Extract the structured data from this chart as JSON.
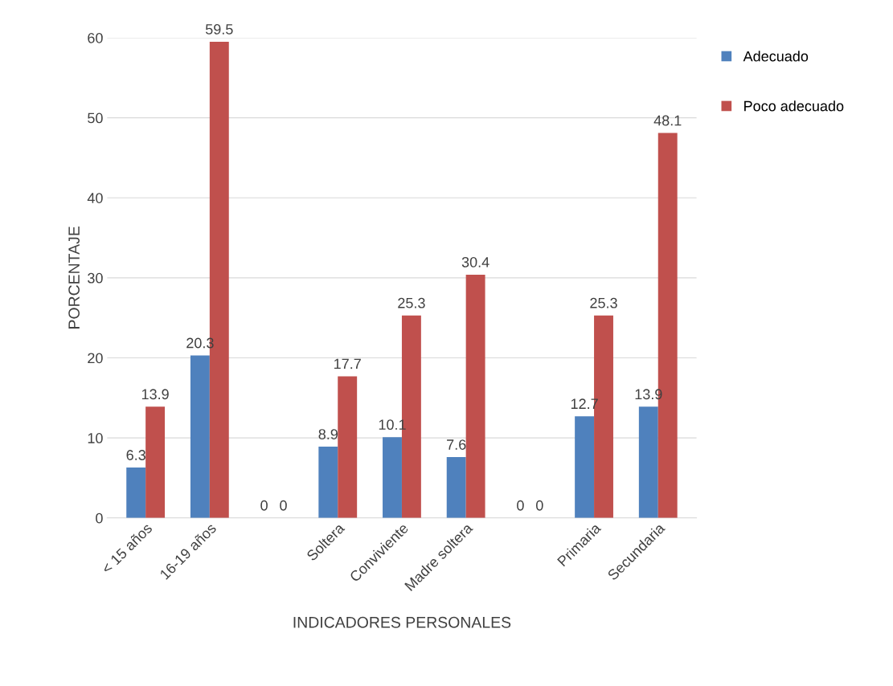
{
  "chart_data": {
    "type": "bar",
    "xlabel": "INDICADORES PERSONALES",
    "ylabel": "PORCENTAJE",
    "categories": [
      "< 15 años",
      "16-19 años",
      null,
      "Soltera",
      "Conviviente",
      "Madre soltera",
      null,
      "Primaria",
      "Secundaria"
    ],
    "series": [
      {
        "name": "Adecuado",
        "color": "#4f81bd",
        "values": [
          6.3,
          20.3,
          0,
          8.9,
          10.1,
          7.6,
          0,
          12.7,
          13.9
        ]
      },
      {
        "name": "Poco adecuado",
        "color": "#c0504d",
        "values": [
          13.9,
          59.5,
          0,
          17.7,
          25.3,
          30.4,
          0,
          25.3,
          48.1
        ]
      }
    ],
    "ylim": [
      0,
      60
    ],
    "yticks": [
      0,
      10,
      20,
      30,
      40,
      50,
      60
    ],
    "grid": "y",
    "legend": "right",
    "data_labels": true
  }
}
